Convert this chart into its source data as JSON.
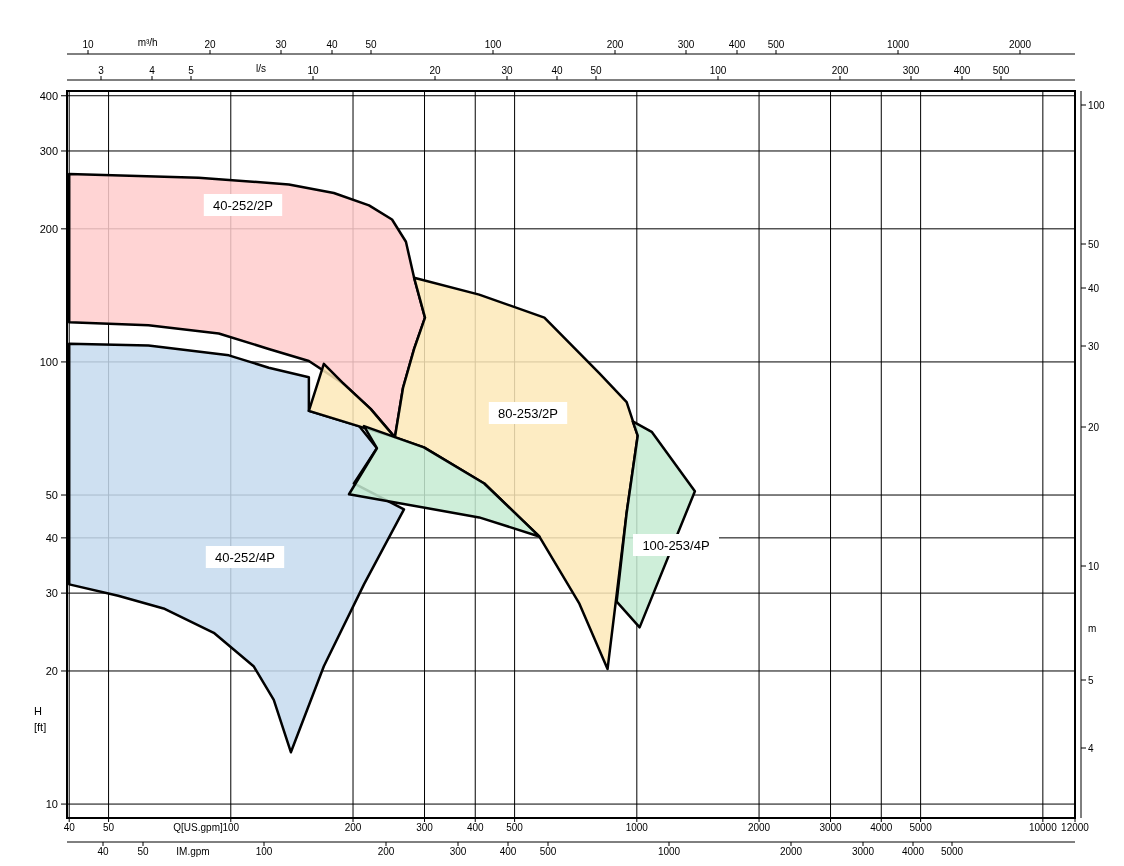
{
  "chart_data": {
    "type": "area",
    "log": "xy",
    "grid": true,
    "xlabel": "Q[US.gpm]",
    "ylabel": "H\n[ft]",
    "y2label": "m",
    "x2label": "m³/h",
    "xlim": [
      39.5,
      12000
    ],
    "xticks": [
      40,
      50,
      100,
      200,
      300,
      400,
      500,
      1000,
      2000,
      3000,
      4000,
      5000,
      10000,
      12000
    ],
    "ylim": [
      9.3,
      410
    ],
    "yticks": [
      10,
      20,
      30,
      40,
      50,
      100,
      200,
      300,
      400
    ],
    "series": [
      {
        "color": "#ffcccc",
        "x": [
          40,
          83.3,
          139,
          179.4,
          219,
          249.5,
          270,
          282.8,
          300.8,
          282.8,
          265.5,
          253.6,
          221,
          190,
          155.7,
          124,
          93.4,
          62.7,
          40
        ],
        "values": [
          266,
          261,
          252,
          241,
          226,
          210,
          187,
          155,
          126,
          107,
          87.3,
          67.5,
          78.3,
          89.1,
          100.5,
          107,
          116,
          121,
          123
        ]
      },
      {
        "color": "#c6dbef",
        "x": [
          40,
          62.7,
          98.9,
          124,
          155.7,
          155.7,
          207,
          229,
          201,
          267,
          212.8,
          169.5,
          140.6,
          127.6,
          113.8,
          90.8,
          68.3,
          52.8,
          40
        ],
        "values": [
          110,
          109,
          103.5,
          97,
          92.3,
          77.5,
          71.6,
          63.8,
          53.1,
          46.4,
          31.4,
          20.5,
          13.1,
          17.2,
          20.5,
          24.4,
          27.7,
          29.6,
          31.4
        ]
      },
      {
        "color": "#fde9b8",
        "x": [
          282.8,
          409,
          592,
          809,
          944,
          1005,
          944,
          847,
          722,
          575,
          421,
          299,
          253.6,
          155.7,
          169.5,
          190,
          221,
          253.6,
          265.5,
          282.8,
          300.8
        ],
        "values": [
          155,
          142,
          126,
          94.2,
          81.1,
          68.1,
          45.6,
          20.2,
          28.4,
          40.3,
          53.1,
          64.1,
          67.5,
          77.5,
          99,
          89.1,
          78.3,
          67.5,
          87.3,
          107,
          126
        ]
      },
      {
        "color": "#c6ebd2",
        "x": [
          212.8,
          299,
          421,
          575,
          409,
          195.5,
          229,
          null,
          977,
          1088,
          1390,
          1016,
          892,
          944,
          1005
        ],
        "values": [
          71.6,
          64.1,
          53.1,
          40.3,
          44.5,
          50.2,
          63.8,
          null,
          73.4,
          69.5,
          51,
          25.1,
          28.7,
          45.6,
          68.1
        ]
      }
    ],
    "annotations": [
      "40-252/2P",
      "80-253/2P",
      "40-252/4P",
      "100-253/4P",
      "l/s",
      "3",
      "4",
      "5",
      "10",
      "20",
      "30",
      "40",
      "50",
      "100",
      "200",
      "300",
      "400",
      "500",
      "IM.gpm",
      "40",
      "50",
      "100",
      "200",
      "300",
      "400",
      "500",
      "1000",
      "2000",
      "3000",
      "4000",
      "5000",
      "10",
      "20",
      "30",
      "40",
      "50",
      "100",
      "200",
      "300",
      "400",
      "500",
      "1000",
      "2000",
      "4",
      "5",
      "10",
      "20",
      "30",
      "40",
      "50",
      "100"
    ]
  }
}
